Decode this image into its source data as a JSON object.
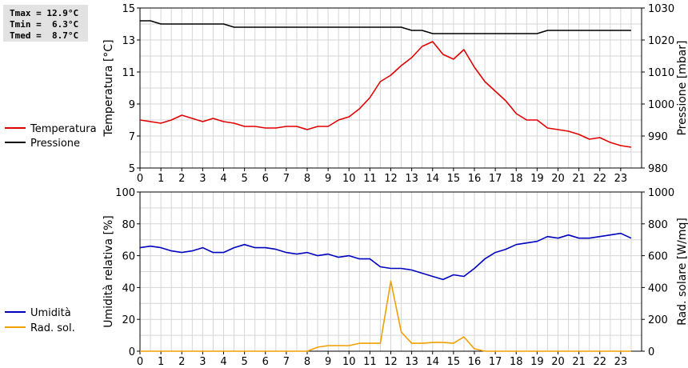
{
  "stats": {
    "tmax": "Tmax = 12.9°C",
    "tmin": "Tmin =  6.3°C",
    "tmed": "Tmed =  8.7°C"
  },
  "chart_data": [
    {
      "type": "line",
      "xlabel": "",
      "x_ticks": [
        0,
        1,
        2,
        3,
        4,
        5,
        6,
        7,
        8,
        9,
        10,
        11,
        12,
        13,
        14,
        15,
        16,
        17,
        18,
        19,
        20,
        21,
        22,
        23
      ],
      "xlim": [
        0,
        24
      ],
      "ylabel": "Temperatura [°C]",
      "ylim": [
        5,
        15
      ],
      "y_ticks": [
        5,
        7,
        9,
        11,
        13,
        15
      ],
      "ylabel_right": "Pressione [mbar]",
      "ylim_right": [
        980,
        1030
      ],
      "y_ticks_right": [
        980,
        990,
        1000,
        1010,
        1020,
        1030
      ],
      "grid": true,
      "legend_placement": "left",
      "series": [
        {
          "name": "Temperatura",
          "axis": "left",
          "color": "#e00000",
          "x": [
            0,
            0.5,
            1,
            1.5,
            2,
            2.5,
            3,
            3.5,
            4,
            4.5,
            5,
            5.5,
            6,
            6.5,
            7,
            7.5,
            8,
            8.5,
            9,
            9.5,
            10,
            10.5,
            11,
            11.5,
            12,
            12.5,
            13,
            13.5,
            14,
            14.5,
            15,
            15.5,
            16,
            16.5,
            17,
            17.5,
            18,
            18.5,
            19,
            19.5,
            20,
            20.5,
            21,
            21.5,
            22,
            22.5,
            23,
            23.5
          ],
          "y": [
            8.0,
            7.9,
            7.8,
            8.0,
            8.3,
            8.1,
            7.9,
            8.1,
            7.9,
            7.8,
            7.6,
            7.6,
            7.5,
            7.5,
            7.6,
            7.6,
            7.4,
            7.6,
            7.6,
            8.0,
            8.2,
            8.7,
            9.4,
            10.4,
            10.8,
            11.4,
            11.9,
            12.6,
            12.9,
            12.1,
            11.8,
            12.4,
            11.3,
            10.4,
            9.8,
            9.2,
            8.4,
            8.0,
            8.0,
            7.5,
            7.4,
            7.3,
            7.1,
            6.8,
            6.9,
            6.6,
            6.4,
            6.3
          ]
        },
        {
          "name": "Pressione",
          "axis": "right",
          "color": "#000000",
          "x": [
            0,
            0.5,
            1,
            1.5,
            2,
            2.5,
            3,
            3.5,
            4,
            4.5,
            5,
            5.5,
            6,
            6.5,
            7,
            7.5,
            8,
            8.5,
            9,
            9.5,
            10,
            10.5,
            11,
            11.5,
            12,
            12.5,
            13,
            13.5,
            14,
            14.5,
            15,
            15.5,
            16,
            16.5,
            17,
            17.5,
            18,
            18.5,
            19,
            19.5,
            20,
            20.5,
            21,
            21.5,
            22,
            22.5,
            23,
            23.5
          ],
          "y": [
            1026,
            1026,
            1025,
            1025,
            1025,
            1025,
            1025,
            1025,
            1025,
            1024,
            1024,
            1024,
            1024,
            1024,
            1024,
            1024,
            1024,
            1024,
            1024,
            1024,
            1024,
            1024,
            1024,
            1024,
            1024,
            1024,
            1023,
            1023,
            1022,
            1022,
            1022,
            1022,
            1022,
            1022,
            1022,
            1022,
            1022,
            1022,
            1022,
            1023,
            1023,
            1023,
            1023,
            1023,
            1023,
            1023,
            1023,
            1023
          ]
        }
      ]
    },
    {
      "type": "line",
      "xlabel": "",
      "x_ticks": [
        0,
        1,
        2,
        3,
        4,
        5,
        6,
        7,
        8,
        9,
        10,
        11,
        12,
        13,
        14,
        15,
        16,
        17,
        18,
        19,
        20,
        21,
        22,
        23
      ],
      "xlim": [
        0,
        24
      ],
      "ylabel": "Umidità relativa [%]",
      "ylim": [
        0,
        100
      ],
      "y_ticks": [
        0,
        20,
        40,
        60,
        80,
        100
      ],
      "ylabel_right": "Rad. solare [W/mq]",
      "ylim_right": [
        0,
        1000
      ],
      "y_ticks_right": [
        0,
        200,
        400,
        600,
        800,
        1000
      ],
      "grid": true,
      "legend_placement": "left",
      "series": [
        {
          "name": "Umidità",
          "axis": "left",
          "color": "#0000c0",
          "x": [
            0,
            0.5,
            1,
            1.5,
            2,
            2.5,
            3,
            3.5,
            4,
            4.5,
            5,
            5.5,
            6,
            6.5,
            7,
            7.5,
            8,
            8.5,
            9,
            9.5,
            10,
            10.5,
            11,
            11.5,
            12,
            12.5,
            13,
            13.5,
            14,
            14.5,
            15,
            15.5,
            16,
            16.5,
            17,
            17.5,
            18,
            18.5,
            19,
            19.5,
            20,
            20.5,
            21,
            21.5,
            22,
            22.5,
            23,
            23.5
          ],
          "y": [
            65,
            66,
            65,
            63,
            62,
            63,
            65,
            62,
            62,
            65,
            67,
            65,
            65,
            64,
            62,
            61,
            62,
            60,
            61,
            59,
            60,
            58,
            58,
            53,
            52,
            52,
            51,
            49,
            47,
            45,
            48,
            47,
            52,
            58,
            62,
            64,
            67,
            68,
            69,
            72,
            71,
            73,
            71,
            71,
            72,
            73,
            74,
            71
          ]
        },
        {
          "name": "Rad. sol.",
          "axis": "right",
          "color": "#f0a000",
          "x": [
            0,
            0.5,
            1,
            1.5,
            2,
            2.5,
            3,
            3.5,
            4,
            4.5,
            5,
            5.5,
            6,
            6.5,
            7,
            7.5,
            8,
            8.5,
            9,
            9.5,
            10,
            10.5,
            11,
            11.5,
            12,
            12.5,
            13,
            13.5,
            14,
            14.5,
            15,
            15.5,
            16,
            16.5,
            17,
            17.5,
            18,
            18.5,
            19,
            19.5,
            20,
            20.5,
            21,
            21.5,
            22,
            22.5,
            23,
            23.5
          ],
          "y": [
            0,
            0,
            0,
            0,
            0,
            0,
            0,
            0,
            0,
            0,
            0,
            0,
            0,
            0,
            0,
            0,
            0,
            25,
            35,
            35,
            35,
            50,
            50,
            50,
            440,
            120,
            50,
            50,
            55,
            55,
            50,
            90,
            15,
            0,
            0,
            0,
            0,
            0,
            0,
            0,
            0,
            0,
            0,
            0,
            0,
            0,
            0,
            0
          ]
        }
      ]
    }
  ]
}
